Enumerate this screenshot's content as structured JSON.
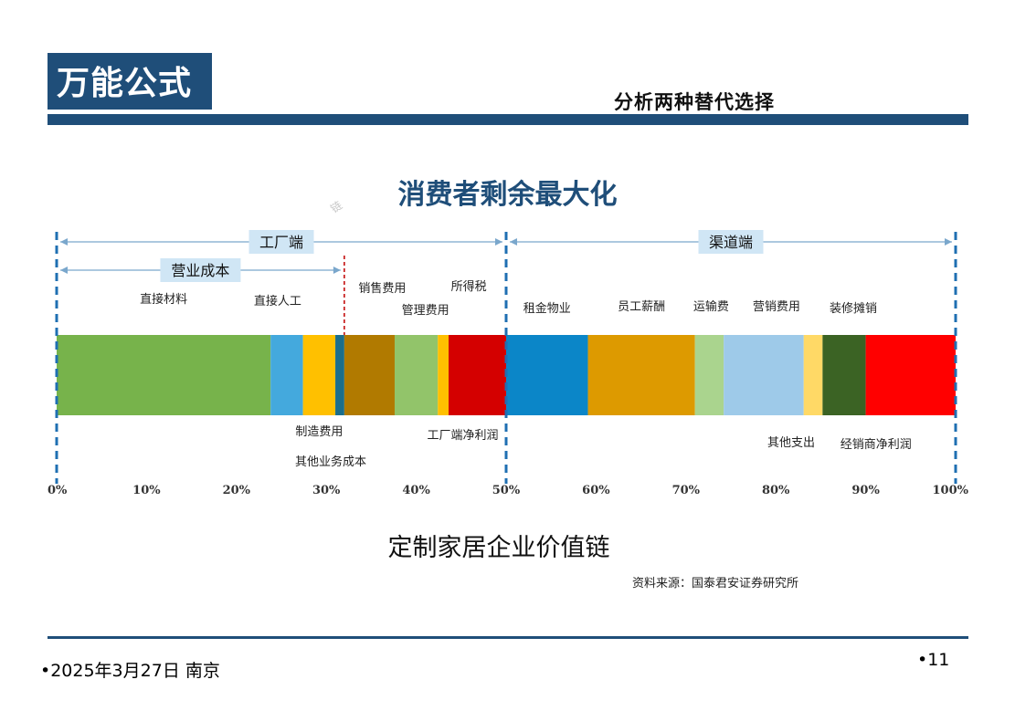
{
  "header": {
    "title": "万能公式",
    "subtitle": "分析两种替代选择"
  },
  "chart_title": "消费者剩余最大化",
  "watermark": "链",
  "chart_data": {
    "type": "bar",
    "orientation": "horizontal-stacked",
    "xlim": [
      0,
      100
    ],
    "ticks": [
      "0%",
      "10%",
      "20%",
      "30%",
      "40%",
      "50%",
      "60%",
      "70%",
      "80%",
      "90%",
      "100%"
    ],
    "spans": [
      {
        "label": "工厂端",
        "from": 0,
        "to": 50
      },
      {
        "label": "渠道端",
        "from": 50,
        "to": 100
      },
      {
        "label": "营业成本",
        "from": 0,
        "to": 32
      }
    ],
    "segments": [
      {
        "label": "直接材料",
        "from": 0,
        "to": 23.8,
        "color": "#77b34b",
        "label_pos": "top"
      },
      {
        "label": "直接人工",
        "from": 23.8,
        "to": 27.4,
        "color": "#44a9dd",
        "label_pos": "top"
      },
      {
        "label": "制造费用",
        "from": 27.4,
        "to": 31,
        "color": "#ffc000",
        "label_pos": "bottom"
      },
      {
        "label": "其他业务成本",
        "from": 31,
        "to": 32,
        "color": "#1b6e8c",
        "label_pos": "bottom"
      },
      {
        "label": "销售费用",
        "from": 32,
        "to": 37.6,
        "color": "#b17a00",
        "label_pos": "top"
      },
      {
        "label": "管理费用",
        "from": 37.6,
        "to": 42.4,
        "color": "#92c46a",
        "label_pos": "top"
      },
      {
        "label": "所得税",
        "from": 42.4,
        "to": 43.6,
        "color": "#ffc000",
        "label_pos": "top"
      },
      {
        "label": "工厂端净利润",
        "from": 43.6,
        "to": 50,
        "color": "#d40000",
        "label_pos": "bottom"
      },
      {
        "label": "租金物业",
        "from": 50,
        "to": 59.1,
        "color": "#0b86c8",
        "label_pos": "top"
      },
      {
        "label": "员工薪酬",
        "from": 59.1,
        "to": 71,
        "color": "#dd9a00",
        "label_pos": "top"
      },
      {
        "label": "运输费",
        "from": 71,
        "to": 74.2,
        "color": "#aad48e",
        "label_pos": "top"
      },
      {
        "label": "营销费用",
        "from": 74.2,
        "to": 83.1,
        "color": "#9ecae9",
        "label_pos": "top"
      },
      {
        "label": "其他支出",
        "from": 83.1,
        "to": 85.2,
        "color": "#ffd966",
        "label_pos": "bottom"
      },
      {
        "label": "装修摊销",
        "from": 85.2,
        "to": 90,
        "color": "#3b6324",
        "label_pos": "top"
      },
      {
        "label": "经销商净利润",
        "from": 90,
        "to": 100,
        "color": "#ff0000",
        "label_pos": "bottom"
      }
    ]
  },
  "caption": "定制家居企业价值链",
  "source": "资料来源：国泰君安证券研究所",
  "footer": {
    "date": "•2025年3月27日 南京",
    "page": "•11"
  },
  "colors": {
    "brand": "#1f4e79",
    "guide": "#1f6fb2",
    "span_box": "#d0e6f5",
    "cost_divider": "#c00000"
  }
}
